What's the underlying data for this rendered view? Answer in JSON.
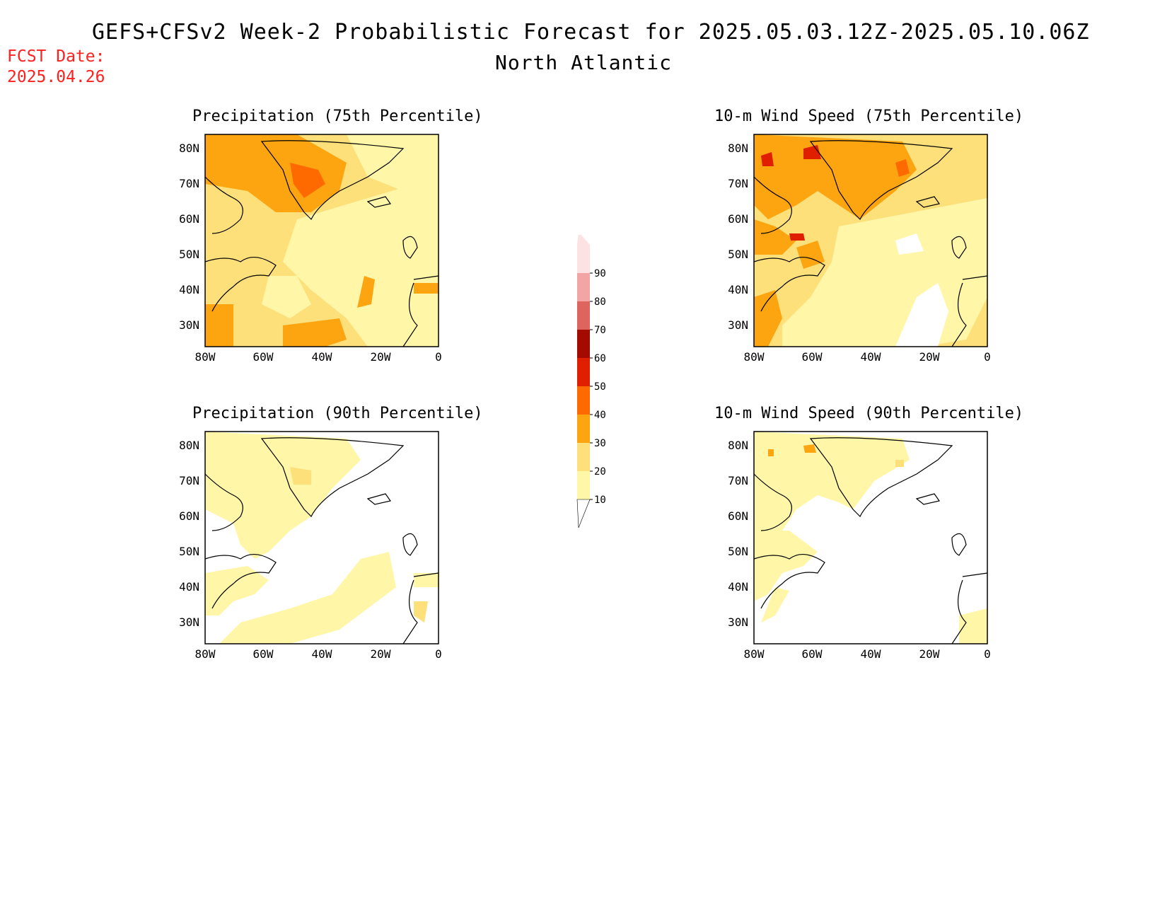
{
  "title": "GEFS+CFSv2 Week-2 Probabilistic Forecast for 2025.05.03.12Z-2025.05.10.06Z",
  "subtitle": "North Atlantic",
  "fcst_label": "FCST Date:",
  "fcst_date": "2025.04.26",
  "panels": [
    {
      "title": "Precipitation (75th Percentile)"
    },
    {
      "title": "10-m Wind Speed (75th Percentile)"
    },
    {
      "title": "Precipitation (90th Percentile)"
    },
    {
      "title": "10-m Wind Speed (90th Percentile)"
    }
  ],
  "lat_ticks": [
    "80N",
    "70N",
    "60N",
    "50N",
    "40N",
    "30N"
  ],
  "lon_ticks": [
    "80W",
    "60W",
    "40W",
    "20W",
    "0"
  ],
  "colorbar": {
    "labels": [
      "10",
      "20",
      "30",
      "40",
      "50",
      "60",
      "70",
      "80",
      "90"
    ],
    "colors": [
      "#fff6a8",
      "#fde07a",
      "#fca510",
      "#ff6a00",
      "#e01e00",
      "#a40b00",
      "#de6460",
      "#f3a4a4",
      "#fde2e4"
    ]
  }
}
